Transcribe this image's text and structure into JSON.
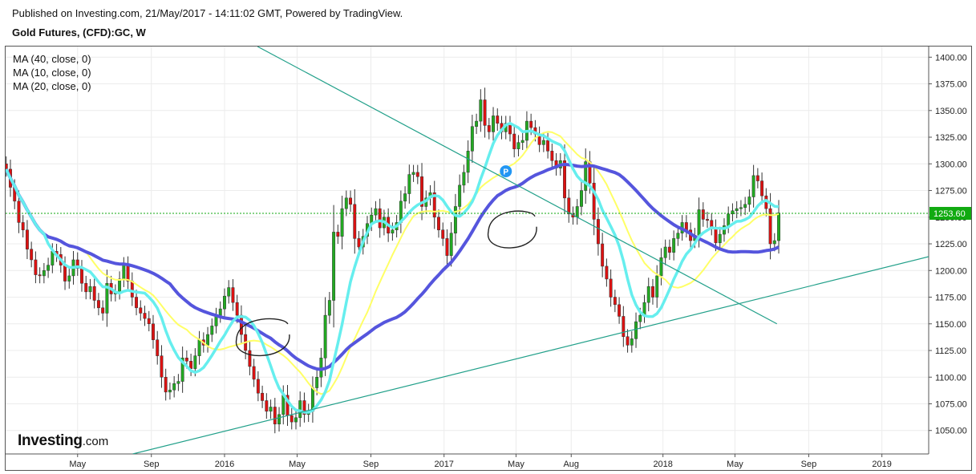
{
  "header": {
    "published": "Published on Investing.com, 21/May/2017 - 14:11:02 GMT, Powered by TradingView.",
    "symbol": "Gold Futures, (CFD):GC, W"
  },
  "legend": [
    "MA (40, close, 0)",
    "MA (10, close, 0)",
    "MA (20, close, 0)"
  ],
  "brand": {
    "name": "Investing",
    "suffix": ".com"
  },
  "colors": {
    "up": "#22aa22",
    "down": "#dd1111",
    "ma40": "#5555dd",
    "ma10": "#66eeee",
    "ma20": "#ffff66",
    "trend": "#22a08a",
    "price_line": "#11aa11",
    "price_badge": "#11aa11",
    "marker": "#2196f3",
    "grid": "#ececec"
  },
  "chart_data": {
    "type": "candlestick",
    "y_axis": {
      "range": [
        1028,
        1410
      ],
      "ticks": [
        "1400.00",
        "1375.00",
        "1350.00",
        "1325.00",
        "1300.00",
        "1275.00",
        "1250.00",
        "1225.00",
        "1200.00",
        "1175.00",
        "1150.00",
        "1125.00",
        "1100.00",
        "1075.00",
        "1050.00"
      ]
    },
    "current_price": "1253.60",
    "x_axis": {
      "labels": [
        {
          "label": "May",
          "date": "2015-05-01"
        },
        {
          "label": "Sep",
          "date": "2015-09-01"
        },
        {
          "label": "2016",
          "date": "2016-01-01"
        },
        {
          "label": "May",
          "date": "2016-05-01"
        },
        {
          "label": "Sep",
          "date": "2016-09-01"
        },
        {
          "label": "2017",
          "date": "2017-01-01"
        },
        {
          "label": "May",
          "date": "2017-05-01"
        },
        {
          "label": "Aug",
          "date": "2017-08-01"
        },
        {
          "label": "2018",
          "date": "2018-01-01"
        },
        {
          "label": "May",
          "date": "2018-05-01"
        },
        {
          "label": "Sep",
          "date": "2018-09-01"
        },
        {
          "label": "2019",
          "date": "2019-01-01"
        }
      ],
      "range": [
        "2015-01-01",
        "2019-03-20"
      ]
    },
    "series_closes": [
      1295,
      1278,
      1265,
      1245,
      1238,
      1220,
      1210,
      1196,
      1195,
      1200,
      1205,
      1218,
      1215,
      1205,
      1190,
      1195,
      1210,
      1202,
      1188,
      1180,
      1185,
      1172,
      1165,
      1160,
      1188,
      1178,
      1180,
      1192,
      1205,
      1190,
      1175,
      1165,
      1160,
      1155,
      1150,
      1135,
      1120,
      1100,
      1086,
      1088,
      1094,
      1096,
      1118,
      1115,
      1108,
      1120,
      1135,
      1130,
      1140,
      1148,
      1158,
      1164,
      1176,
      1184,
      1170,
      1158,
      1140,
      1125,
      1110,
      1098,
      1085,
      1078,
      1068,
      1072,
      1056,
      1065,
      1083,
      1064,
      1058,
      1062,
      1078,
      1065,
      1068,
      1090,
      1100,
      1118,
      1158,
      1172,
      1236,
      1232,
      1258,
      1268,
      1262,
      1230,
      1222,
      1232,
      1244,
      1252,
      1258,
      1240,
      1250,
      1235,
      1238,
      1245,
      1265,
      1272,
      1290,
      1292,
      1288,
      1260,
      1268,
      1273,
      1250,
      1238,
      1230,
      1214,
      1235,
      1260,
      1280,
      1292,
      1312,
      1335,
      1340,
      1360,
      1336,
      1330,
      1345,
      1338,
      1330,
      1338,
      1328,
      1314,
      1320,
      1322,
      1340,
      1334,
      1328,
      1318,
      1322,
      1312,
      1303,
      1296,
      1303,
      1268,
      1253,
      1250,
      1260,
      1275,
      1302,
      1282,
      1248,
      1225,
      1204,
      1192,
      1175,
      1168,
      1157,
      1138,
      1130,
      1136,
      1152,
      1158,
      1170,
      1185,
      1175,
      1195,
      1212,
      1222,
      1217,
      1230,
      1235,
      1245,
      1238,
      1228,
      1233,
      1257,
      1248,
      1247,
      1240,
      1226,
      1234,
      1242,
      1253,
      1256,
      1258,
      1259,
      1262,
      1269,
      1289,
      1284,
      1270,
      1258,
      1225,
      1228,
      1254
    ],
    "moving_averages": [
      {
        "name": "MA (40, close, 0)",
        "period": 40
      },
      {
        "name": "MA (10, close, 0)",
        "period": 10
      },
      {
        "name": "MA (20, close, 0)",
        "period": 20
      }
    ],
    "trendlines": [
      {
        "from": {
          "date": "2016-02-25",
          "price": 1410
        },
        "to": {
          "date": "2018-07-10",
          "price": 1150
        }
      },
      {
        "from": {
          "date": "2015-08-01",
          "price": 1028
        },
        "to": {
          "date": "2019-03-20",
          "price": 1213
        }
      }
    ],
    "annotations": [
      {
        "type": "circle",
        "date": "2016-03-05",
        "price": 1137
      },
      {
        "type": "circle",
        "date": "2017-04-25",
        "price": 1238
      },
      {
        "type": "marker",
        "label": "P",
        "date": "2017-04-14",
        "price": 1293
      }
    ]
  }
}
